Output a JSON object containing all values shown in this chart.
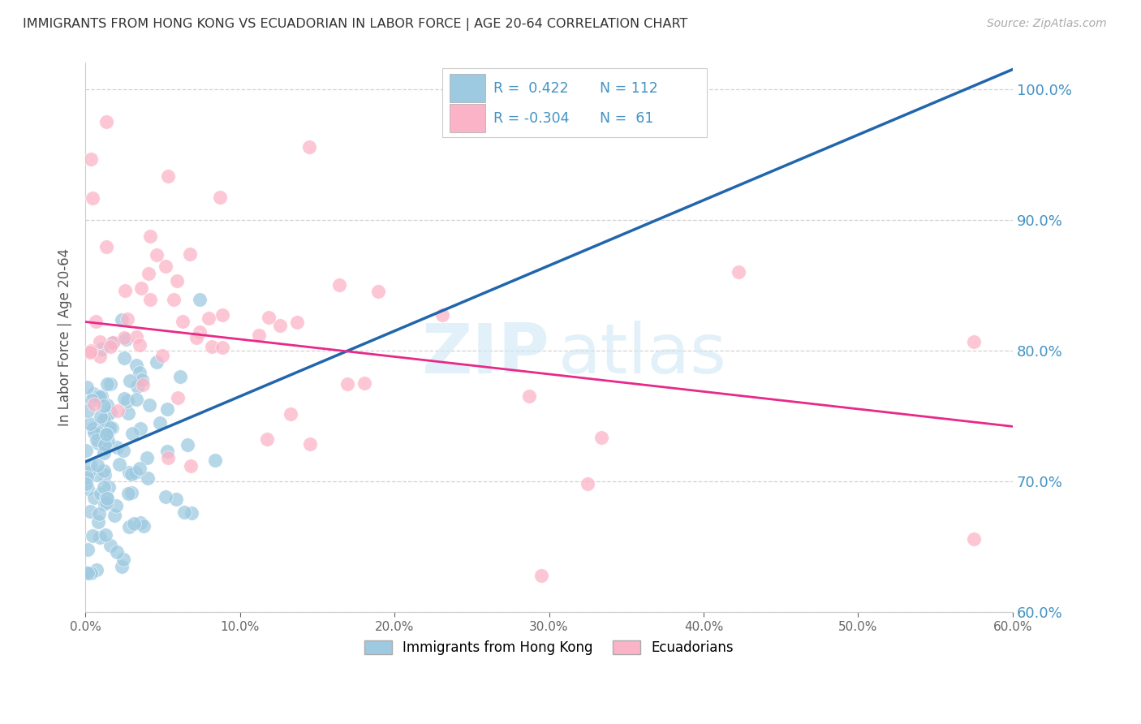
{
  "title": "IMMIGRANTS FROM HONG KONG VS ECUADORIAN IN LABOR FORCE | AGE 20-64 CORRELATION CHART",
  "source": "Source: ZipAtlas.com",
  "ylabel": "In Labor Force | Age 20-64",
  "legend_label1": "Immigrants from Hong Kong",
  "legend_label2": "Ecuadorians",
  "r1": 0.422,
  "n1": 112,
  "r2": -0.304,
  "n2": 61,
  "color1": "#9ecae1",
  "color2": "#fbb4c7",
  "line_color1": "#2166ac",
  "line_color2": "#e7298a",
  "right_axis_color": "#4393c3",
  "title_color": "#333333",
  "xlim": [
    0.0,
    0.6
  ],
  "ylim": [
    0.6,
    1.02
  ],
  "yticks": [
    0.6,
    0.7,
    0.8,
    0.9,
    1.0
  ],
  "xticks": [
    0.0,
    0.1,
    0.2,
    0.3,
    0.4,
    0.5,
    0.6
  ],
  "hk_trend_x0": 0.0,
  "hk_trend_y0": 0.715,
  "hk_trend_x1": 0.6,
  "hk_trend_y1": 1.015,
  "ec_trend_x0": 0.0,
  "ec_trend_y0": 0.822,
  "ec_trend_x1": 0.6,
  "ec_trend_y1": 0.742
}
